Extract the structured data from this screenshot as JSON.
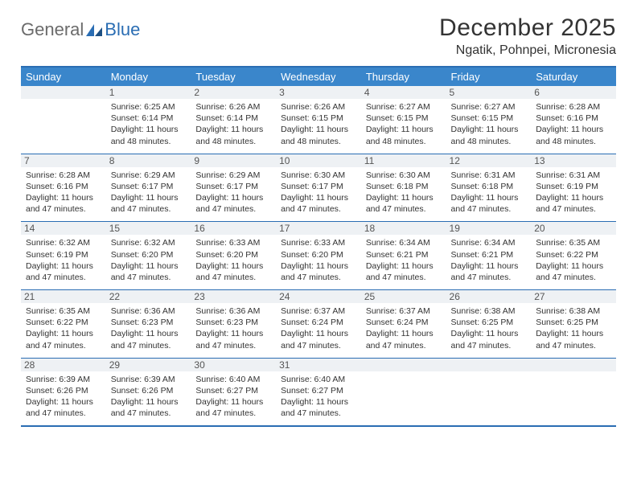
{
  "brand": {
    "part1": "General",
    "part2": "Blue"
  },
  "title": "December 2025",
  "location": "Ngatik, Pohnpei, Micronesia",
  "colors": {
    "header_bg": "#3a86cb",
    "border": "#2a6db3",
    "daynum_bg": "#eef1f4",
    "text": "#333333",
    "logo_gray": "#6b6b6b",
    "logo_blue": "#2a6db3",
    "page_bg": "#ffffff"
  },
  "typography": {
    "title_fontsize": 30,
    "location_fontsize": 16,
    "dayhead_fontsize": 13,
    "daynum_fontsize": 12,
    "cell_fontsize": 10.5
  },
  "day_headers": [
    "Sunday",
    "Monday",
    "Tuesday",
    "Wednesday",
    "Thursday",
    "Friday",
    "Saturday"
  ],
  "weeks": [
    [
      null,
      {
        "n": "1",
        "sr": "Sunrise: 6:25 AM",
        "ss": "Sunset: 6:14 PM",
        "d1": "Daylight: 11 hours",
        "d2": "and 48 minutes."
      },
      {
        "n": "2",
        "sr": "Sunrise: 6:26 AM",
        "ss": "Sunset: 6:14 PM",
        "d1": "Daylight: 11 hours",
        "d2": "and 48 minutes."
      },
      {
        "n": "3",
        "sr": "Sunrise: 6:26 AM",
        "ss": "Sunset: 6:15 PM",
        "d1": "Daylight: 11 hours",
        "d2": "and 48 minutes."
      },
      {
        "n": "4",
        "sr": "Sunrise: 6:27 AM",
        "ss": "Sunset: 6:15 PM",
        "d1": "Daylight: 11 hours",
        "d2": "and 48 minutes."
      },
      {
        "n": "5",
        "sr": "Sunrise: 6:27 AM",
        "ss": "Sunset: 6:15 PM",
        "d1": "Daylight: 11 hours",
        "d2": "and 48 minutes."
      },
      {
        "n": "6",
        "sr": "Sunrise: 6:28 AM",
        "ss": "Sunset: 6:16 PM",
        "d1": "Daylight: 11 hours",
        "d2": "and 48 minutes."
      }
    ],
    [
      {
        "n": "7",
        "sr": "Sunrise: 6:28 AM",
        "ss": "Sunset: 6:16 PM",
        "d1": "Daylight: 11 hours",
        "d2": "and 47 minutes."
      },
      {
        "n": "8",
        "sr": "Sunrise: 6:29 AM",
        "ss": "Sunset: 6:17 PM",
        "d1": "Daylight: 11 hours",
        "d2": "and 47 minutes."
      },
      {
        "n": "9",
        "sr": "Sunrise: 6:29 AM",
        "ss": "Sunset: 6:17 PM",
        "d1": "Daylight: 11 hours",
        "d2": "and 47 minutes."
      },
      {
        "n": "10",
        "sr": "Sunrise: 6:30 AM",
        "ss": "Sunset: 6:17 PM",
        "d1": "Daylight: 11 hours",
        "d2": "and 47 minutes."
      },
      {
        "n": "11",
        "sr": "Sunrise: 6:30 AM",
        "ss": "Sunset: 6:18 PM",
        "d1": "Daylight: 11 hours",
        "d2": "and 47 minutes."
      },
      {
        "n": "12",
        "sr": "Sunrise: 6:31 AM",
        "ss": "Sunset: 6:18 PM",
        "d1": "Daylight: 11 hours",
        "d2": "and 47 minutes."
      },
      {
        "n": "13",
        "sr": "Sunrise: 6:31 AM",
        "ss": "Sunset: 6:19 PM",
        "d1": "Daylight: 11 hours",
        "d2": "and 47 minutes."
      }
    ],
    [
      {
        "n": "14",
        "sr": "Sunrise: 6:32 AM",
        "ss": "Sunset: 6:19 PM",
        "d1": "Daylight: 11 hours",
        "d2": "and 47 minutes."
      },
      {
        "n": "15",
        "sr": "Sunrise: 6:32 AM",
        "ss": "Sunset: 6:20 PM",
        "d1": "Daylight: 11 hours",
        "d2": "and 47 minutes."
      },
      {
        "n": "16",
        "sr": "Sunrise: 6:33 AM",
        "ss": "Sunset: 6:20 PM",
        "d1": "Daylight: 11 hours",
        "d2": "and 47 minutes."
      },
      {
        "n": "17",
        "sr": "Sunrise: 6:33 AM",
        "ss": "Sunset: 6:20 PM",
        "d1": "Daylight: 11 hours",
        "d2": "and 47 minutes."
      },
      {
        "n": "18",
        "sr": "Sunrise: 6:34 AM",
        "ss": "Sunset: 6:21 PM",
        "d1": "Daylight: 11 hours",
        "d2": "and 47 minutes."
      },
      {
        "n": "19",
        "sr": "Sunrise: 6:34 AM",
        "ss": "Sunset: 6:21 PM",
        "d1": "Daylight: 11 hours",
        "d2": "and 47 minutes."
      },
      {
        "n": "20",
        "sr": "Sunrise: 6:35 AM",
        "ss": "Sunset: 6:22 PM",
        "d1": "Daylight: 11 hours",
        "d2": "and 47 minutes."
      }
    ],
    [
      {
        "n": "21",
        "sr": "Sunrise: 6:35 AM",
        "ss": "Sunset: 6:22 PM",
        "d1": "Daylight: 11 hours",
        "d2": "and 47 minutes."
      },
      {
        "n": "22",
        "sr": "Sunrise: 6:36 AM",
        "ss": "Sunset: 6:23 PM",
        "d1": "Daylight: 11 hours",
        "d2": "and 47 minutes."
      },
      {
        "n": "23",
        "sr": "Sunrise: 6:36 AM",
        "ss": "Sunset: 6:23 PM",
        "d1": "Daylight: 11 hours",
        "d2": "and 47 minutes."
      },
      {
        "n": "24",
        "sr": "Sunrise: 6:37 AM",
        "ss": "Sunset: 6:24 PM",
        "d1": "Daylight: 11 hours",
        "d2": "and 47 minutes."
      },
      {
        "n": "25",
        "sr": "Sunrise: 6:37 AM",
        "ss": "Sunset: 6:24 PM",
        "d1": "Daylight: 11 hours",
        "d2": "and 47 minutes."
      },
      {
        "n": "26",
        "sr": "Sunrise: 6:38 AM",
        "ss": "Sunset: 6:25 PM",
        "d1": "Daylight: 11 hours",
        "d2": "and 47 minutes."
      },
      {
        "n": "27",
        "sr": "Sunrise: 6:38 AM",
        "ss": "Sunset: 6:25 PM",
        "d1": "Daylight: 11 hours",
        "d2": "and 47 minutes."
      }
    ],
    [
      {
        "n": "28",
        "sr": "Sunrise: 6:39 AM",
        "ss": "Sunset: 6:26 PM",
        "d1": "Daylight: 11 hours",
        "d2": "and 47 minutes."
      },
      {
        "n": "29",
        "sr": "Sunrise: 6:39 AM",
        "ss": "Sunset: 6:26 PM",
        "d1": "Daylight: 11 hours",
        "d2": "and 47 minutes."
      },
      {
        "n": "30",
        "sr": "Sunrise: 6:40 AM",
        "ss": "Sunset: 6:27 PM",
        "d1": "Daylight: 11 hours",
        "d2": "and 47 minutes."
      },
      {
        "n": "31",
        "sr": "Sunrise: 6:40 AM",
        "ss": "Sunset: 6:27 PM",
        "d1": "Daylight: 11 hours",
        "d2": "and 47 minutes."
      },
      null,
      null,
      null
    ]
  ]
}
